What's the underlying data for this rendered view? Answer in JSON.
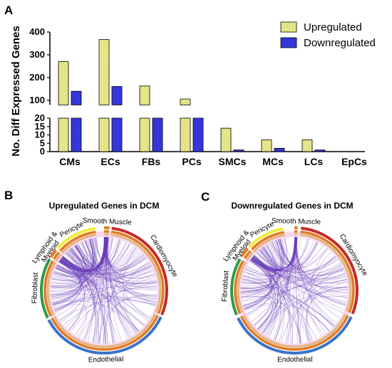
{
  "panels": {
    "a_letter": "A",
    "b_letter": "B",
    "c_letter": "C"
  },
  "colors": {
    "upregulated": "#f2f291",
    "downregulated": "#3d3df2",
    "chord_purple": "#6a3fb8",
    "ring_red": "#c42a2a",
    "ring_orange": "#e07b22",
    "ring_tan": "#dfb36a",
    "ring_blue": "#3a73c8",
    "ring_green": "#2f9a46",
    "ring_yellow": "#f0ee3a",
    "ring_pink": "#f6c4e8"
  },
  "chart_data": [
    {
      "type": "bar",
      "ylabel": "No. Diff Expressed Genes",
      "xlabel": "",
      "categories": [
        "CMs",
        "ECs",
        "FBs",
        "PCs",
        "SMCs",
        "MCs",
        "LCs",
        "EpCs"
      ],
      "series": [
        {
          "name": "Upregulated",
          "values": [
            270,
            367,
            163,
            106,
            14,
            7,
            7,
            0
          ]
        },
        {
          "name": "Downregulated",
          "values": [
            140,
            161,
            68,
            20,
            1,
            2,
            1,
            0
          ]
        }
      ],
      "y_axis_broken": true,
      "y_lower_range": [
        0,
        20
      ],
      "y_upper_range": [
        80,
        400
      ],
      "y_lower_ticks": [
        "0",
        "5",
        "10",
        "15",
        "20"
      ],
      "y_upper_ticks": [
        "100",
        "200",
        "300",
        "400"
      ],
      "legend_position": "top-right",
      "grid": false
    },
    {
      "type": "chord",
      "title": "Upregulated Genes in DCM",
      "sectors": [
        "Smooth Muscle",
        "Cardiomyocyte",
        "Endothelial",
        "Fibroblast",
        "Lymphoid & Myeloid",
        "Pericyte"
      ]
    },
    {
      "type": "chord",
      "title": "Downregulated Genes in DCM",
      "sectors": [
        "Smooth Muscle",
        "Cardiomyocyte",
        "Endothelial",
        "Fibroblast",
        "Lymphoid & Myeloid",
        "Pericyte"
      ]
    }
  ]
}
